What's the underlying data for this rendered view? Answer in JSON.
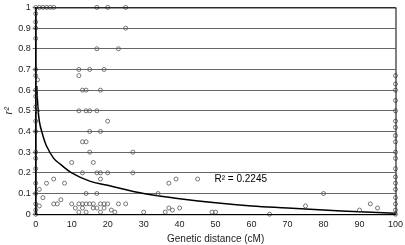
{
  "chart_data": {
    "type": "scatter",
    "x_label": "Genetic distance (cM)",
    "y_label": "r²",
    "annotations": [
      {
        "text": "R² = 0.2245",
        "x": 57,
        "y": 0.17
      }
    ],
    "xlim": [
      0,
      100
    ],
    "xticks": [
      0,
      10,
      20,
      30,
      40,
      50,
      60,
      70,
      80,
      90,
      100
    ],
    "ylim": [
      0,
      1
    ],
    "yticks": [
      0,
      0.1,
      0.2,
      0.3,
      0.4,
      0.5,
      0.6,
      0.7,
      0.8,
      0.9,
      1
    ],
    "grid": "y",
    "series": [
      {
        "type": "scatter",
        "marker": "circle",
        "color": "#555555",
        "x": [
          0,
          0,
          0,
          0,
          0,
          0,
          0,
          0,
          0,
          0,
          0,
          0,
          0,
          0,
          0,
          0,
          0,
          0,
          0,
          0,
          0.5,
          0.5,
          1,
          1,
          1,
          2,
          3,
          4,
          5,
          17,
          20,
          25,
          25,
          17,
          23,
          12,
          15,
          19,
          12,
          13,
          14,
          18,
          12,
          14,
          15,
          17,
          20,
          15,
          18,
          13,
          14,
          15,
          27,
          10,
          16,
          13,
          17,
          18,
          20,
          27,
          5,
          18,
          39,
          45,
          3,
          8,
          37,
          14,
          17,
          34,
          80,
          2,
          7,
          5,
          6,
          10,
          12,
          13,
          14,
          15,
          16,
          18,
          19,
          20,
          23,
          25,
          11,
          13,
          16,
          17,
          19,
          21,
          37,
          38,
          40,
          36,
          12,
          14,
          18,
          22,
          49,
          50,
          65,
          75,
          90,
          93,
          95,
          30,
          100,
          100,
          100,
          100,
          100,
          100,
          100,
          100,
          100,
          100,
          100,
          100,
          100,
          100,
          100,
          100,
          100,
          100,
          100
        ],
        "values": [
          1,
          0.97,
          0.93,
          0.9,
          0.85,
          0.7,
          0.67,
          0.6,
          0.57,
          0.52,
          0.45,
          0.4,
          0.3,
          0.27,
          0.22,
          0.15,
          0.1,
          0.05,
          0.02,
          0,
          0.65,
          0.5,
          0.12,
          0.04,
          1,
          1,
          1,
          1,
          1,
          1,
          1,
          1,
          0.9,
          0.8,
          0.8,
          0.7,
          0.7,
          0.7,
          0.67,
          0.6,
          0.6,
          0.6,
          0.5,
          0.5,
          0.5,
          0.5,
          0.45,
          0.4,
          0.4,
          0.35,
          0.35,
          0.3,
          0.3,
          0.25,
          0.25,
          0.2,
          0.2,
          0.2,
          0.2,
          0.2,
          0.17,
          0.17,
          0.17,
          0.17,
          0.15,
          0.15,
          0.15,
          0.1,
          0.1,
          0.1,
          0.1,
          0.08,
          0.07,
          0.05,
          0.05,
          0.05,
          0.05,
          0.05,
          0.05,
          0.05,
          0.05,
          0.05,
          0.05,
          0.05,
          0.05,
          0.05,
          0.03,
          0.03,
          0.03,
          0.03,
          0.03,
          0.02,
          0.03,
          0.02,
          0.03,
          0.01,
          0.01,
          0.01,
          0.01,
          0.01,
          0.01,
          0.01,
          0,
          0.04,
          0.02,
          0.05,
          0.03,
          0.01,
          0.67,
          0.63,
          0.6,
          0.55,
          0.5,
          0.45,
          0.42,
          0.38,
          0.35,
          0.3,
          0.27,
          0.22,
          0.18,
          0.15,
          0.12,
          0.08,
          0.05,
          0.02,
          0
        ]
      },
      {
        "type": "line",
        "line_style": "solid",
        "color": "#000000",
        "x": [
          0.3,
          0.5,
          1,
          2,
          3,
          5,
          7,
          10,
          15,
          20,
          30,
          40,
          50,
          60,
          70,
          80,
          90,
          100
        ],
        "values": [
          0.62,
          0.55,
          0.45,
          0.38,
          0.33,
          0.27,
          0.24,
          0.2,
          0.16,
          0.14,
          0.1,
          0.075,
          0.055,
          0.04,
          0.03,
          0.02,
          0.012,
          0.005
        ]
      }
    ]
  }
}
